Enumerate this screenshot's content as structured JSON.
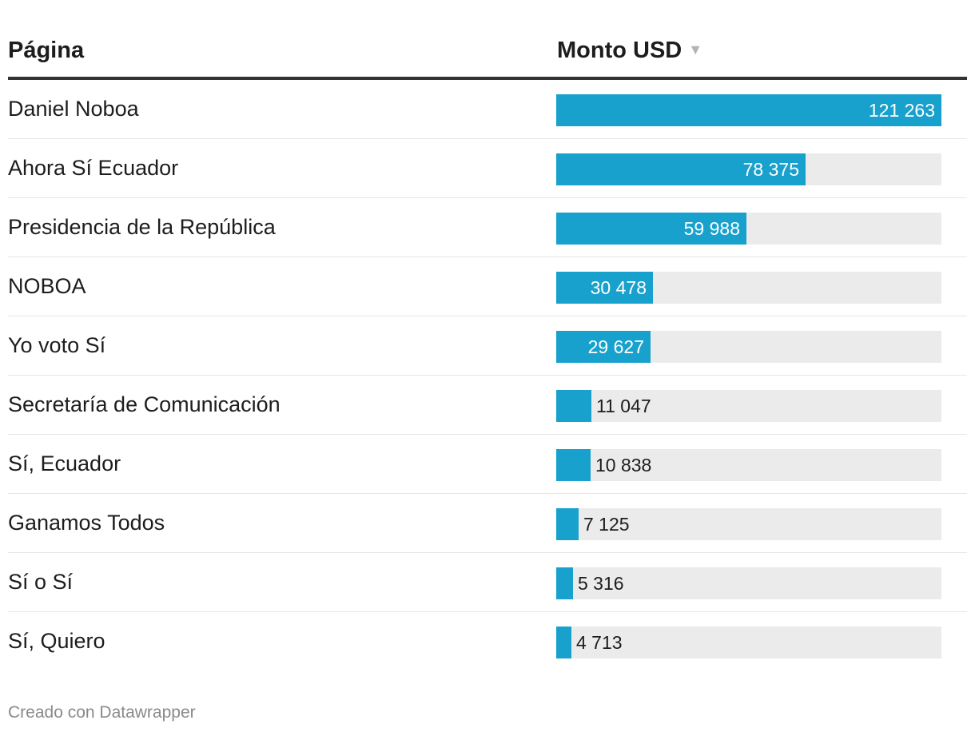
{
  "table": {
    "headers": {
      "page": "Página",
      "amount": "Monto USD"
    },
    "sort_icon": "sort-descending-icon"
  },
  "chart_data": {
    "type": "table",
    "title": "",
    "columns": [
      "Página",
      "Monto USD"
    ],
    "categories": [
      "Daniel Noboa",
      "Ahora Sí Ecuador",
      "Presidencia de la República",
      "NOBOA",
      "Yo voto Sí",
      "Secretaría de Comunicación",
      "Sí, Ecuador",
      "Ganamos Todos",
      "Sí o Sí",
      "Sí, Quiero"
    ],
    "values": [
      121263,
      78375,
      59988,
      30478,
      29627,
      11047,
      10838,
      7125,
      5316,
      4713
    ],
    "value_labels": [
      "121 263",
      "78 375",
      "59 988",
      "30 478",
      "29 627",
      "11 047",
      "10 838",
      "7 125",
      "5 316",
      "4 713"
    ],
    "xlim": [
      0,
      121263
    ],
    "bar_color": "#18a1cd",
    "track_color": "#ebebeb"
  },
  "footer": {
    "credit": "Creado con Datawrapper"
  }
}
